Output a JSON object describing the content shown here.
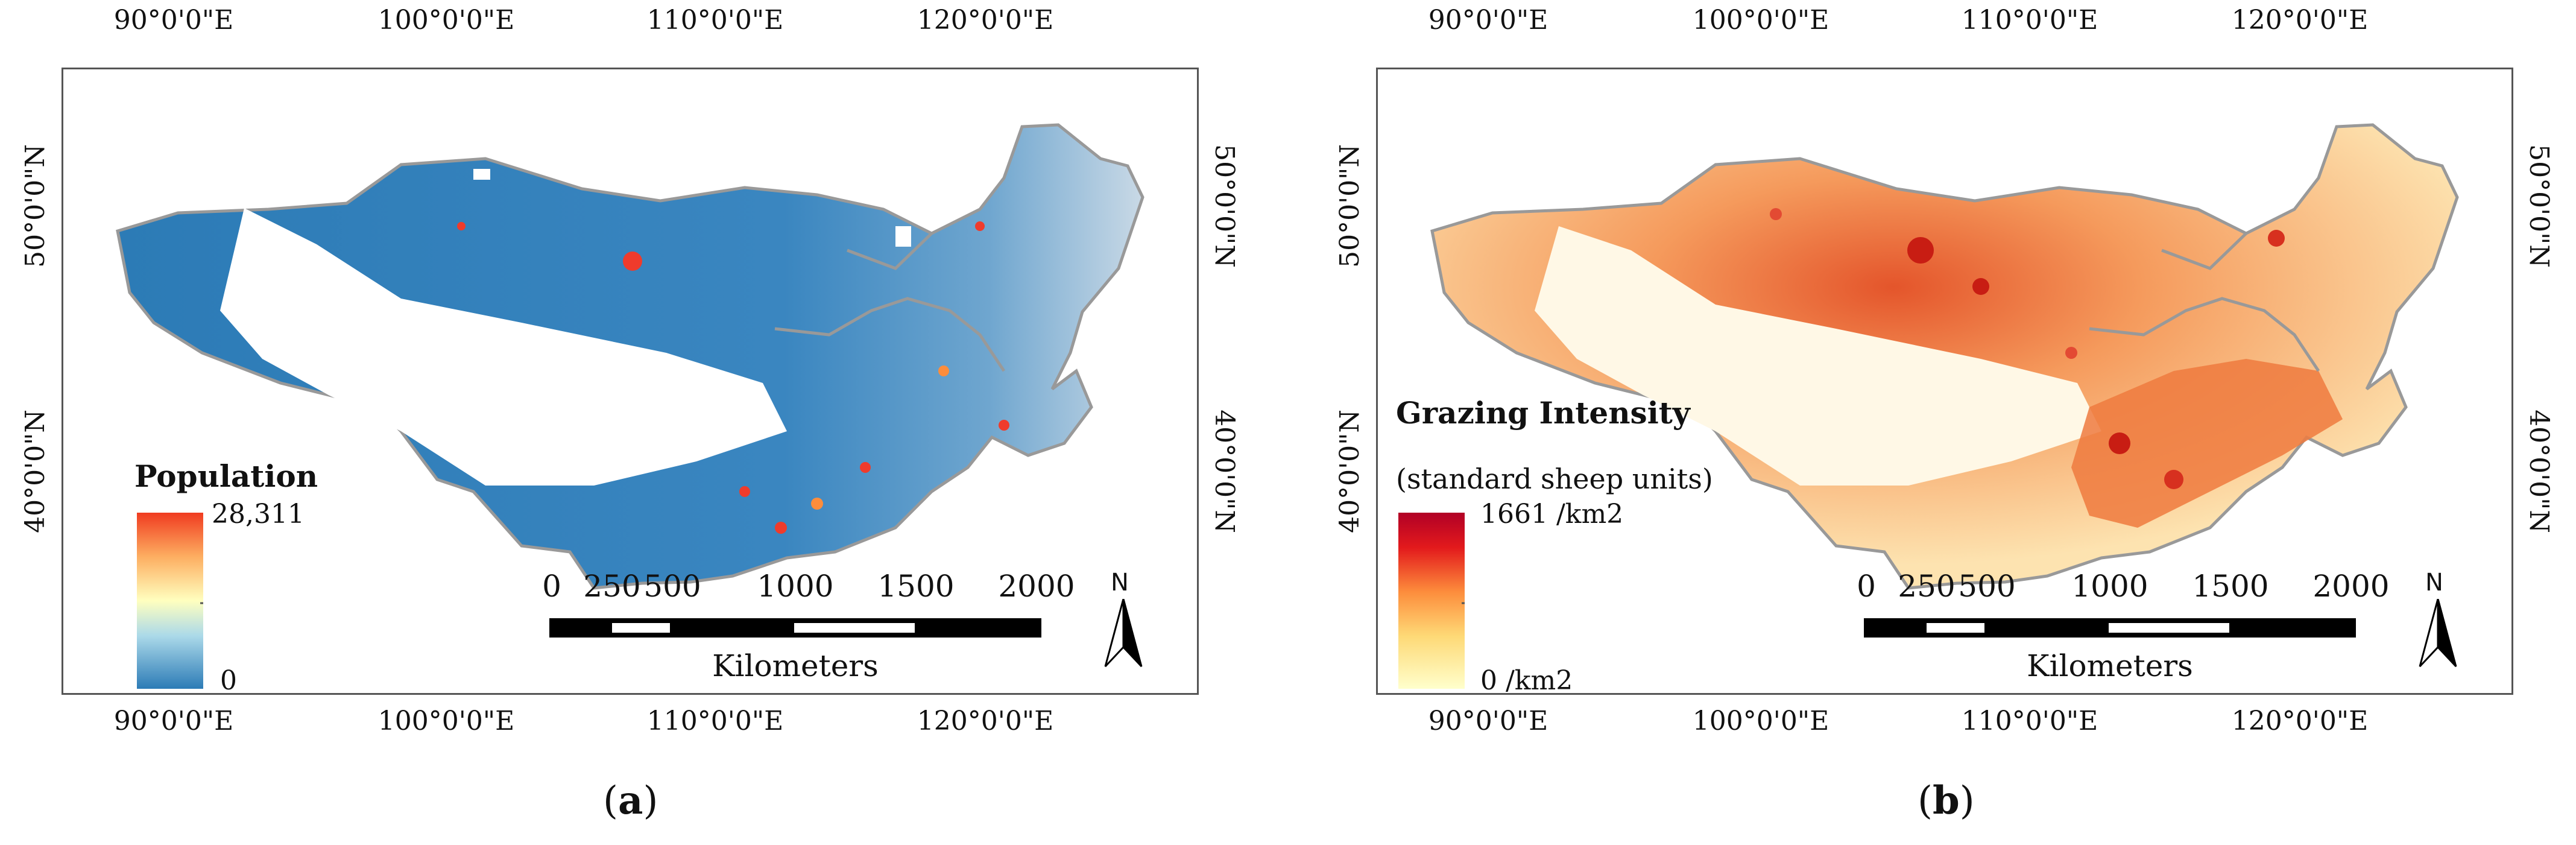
{
  "panels": [
    {
      "id": "a",
      "caption": "a",
      "top_lon_labels": [
        "90°0'0\"E",
        "100°0'0\"E",
        "110°0'0\"E",
        "120°0'0\"E"
      ],
      "bottom_lon_labels": [
        "90°0'0\"E",
        "100°0'0\"E",
        "110°0'0\"E",
        "120°0'0\"E"
      ],
      "lat_labels": [
        "50°0'0\"N",
        "40°0'0\"N"
      ],
      "legend": {
        "title": "Population",
        "subtitle": "",
        "max_label": "28,311",
        "min_label": "0",
        "colors": [
          "#2c7bb6",
          "#abd9e9",
          "#ffffbf",
          "#fdae61",
          "#f03b20"
        ]
      },
      "scale": {
        "ticks": [
          "0",
          "250",
          "500",
          "1000",
          "1500",
          "2000"
        ],
        "unit": "Kilometers"
      },
      "north": "N",
      "fill_color": "#2c7bb6",
      "accent_color": "#ef3b2c"
    },
    {
      "id": "b",
      "caption": "b",
      "top_lon_labels": [
        "90°0'0\"E",
        "100°0'0\"E",
        "110°0'0\"E",
        "120°0'0\"E"
      ],
      "bottom_lon_labels": [
        "90°0'0\"E",
        "100°0'0\"E",
        "110°0'0\"E",
        "120°0'0\"E"
      ],
      "lat_labels": [
        "50°0'0\"N",
        "40°0'0\"N"
      ],
      "legend": {
        "title": "Grazing Intensity",
        "subtitle": "(standard sheep units)",
        "max_label": "1661 /km2",
        "min_label": "0 /km2",
        "colors": [
          "#ffffcc",
          "#fed976",
          "#fd8d3c",
          "#e31a1c",
          "#b10026"
        ]
      },
      "scale": {
        "ticks": [
          "0",
          "250",
          "500",
          "1000",
          "1500",
          "2000"
        ],
        "unit": "Kilometers"
      },
      "north": "N",
      "fill_color": "#f7a66a",
      "accent_color": "#c81d13"
    }
  ]
}
